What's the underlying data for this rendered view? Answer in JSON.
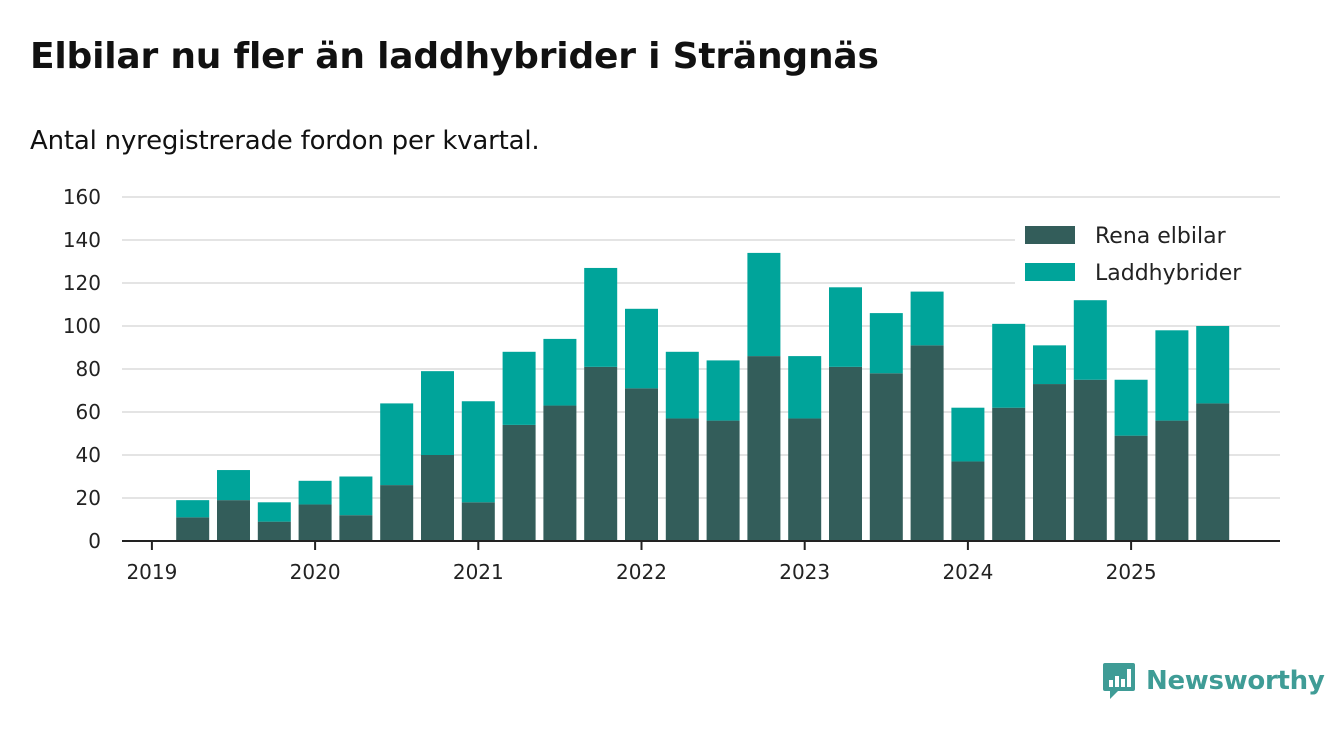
{
  "chart_data": {
    "type": "bar",
    "stacked": true,
    "title": "Elbilar nu fler än laddhybrider i Strängnäs",
    "subtitle": "Antal nyregistrerade fordon per kvartal.",
    "xlabel": "",
    "ylabel": "",
    "ylim": [
      0,
      160
    ],
    "yticks": [
      0,
      20,
      40,
      60,
      80,
      100,
      120,
      140,
      160
    ],
    "xticks": [
      "2019",
      "2020",
      "2021",
      "2022",
      "2023",
      "2024",
      "2025"
    ],
    "legend_position": "top-right",
    "categories": [
      "2019 Q1",
      "2019 Q2",
      "2019 Q3",
      "2019 Q4",
      "2020 Q1",
      "2020 Q2",
      "2020 Q3",
      "2020 Q4",
      "2021 Q1",
      "2021 Q2",
      "2021 Q3",
      "2021 Q4",
      "2022 Q1",
      "2022 Q2",
      "2022 Q3",
      "2022 Q4",
      "2023 Q1",
      "2023 Q2",
      "2023 Q3",
      "2023 Q4",
      "2024 Q1",
      "2024 Q2",
      "2024 Q3",
      "2024 Q4",
      "2025 Q1",
      "2025 Q2",
      "2025 Q3"
    ],
    "series": [
      {
        "name": "Rena elbilar",
        "color": "#335d5a",
        "values": [
          0,
          11,
          19,
          9,
          17,
          12,
          26,
          40,
          18,
          54,
          63,
          81,
          71,
          57,
          56,
          86,
          57,
          81,
          78,
          91,
          37,
          62,
          73,
          75,
          49,
          56,
          64
        ]
      },
      {
        "name": "Laddhybrider",
        "color": "#00a49a",
        "values": [
          0,
          8,
          14,
          9,
          11,
          18,
          38,
          39,
          47,
          34,
          31,
          46,
          37,
          31,
          28,
          48,
          29,
          37,
          28,
          25,
          25,
          39,
          18,
          37,
          26,
          42,
          36
        ]
      }
    ]
  },
  "brand": {
    "name": "Newsworthy",
    "icon": "newsworthy-logo-icon"
  }
}
